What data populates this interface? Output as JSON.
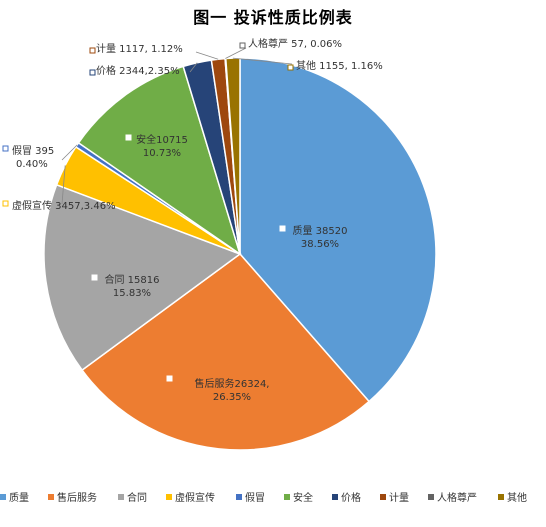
{
  "chart_data": {
    "type": "pie",
    "title": "图一    投诉性质比例表",
    "legend_position": "bottom",
    "slices": [
      {
        "name": "质量",
        "value": 38520,
        "percent_label": "38.56%",
        "color": "#5B9BD5",
        "label": "质量 38520",
        "sub": "38.56%"
      },
      {
        "name": "售后服务",
        "value": 26324,
        "percent_label": "26.35%",
        "color": "#ED7D31",
        "label": "售后服务26324,",
        "sub": "26.35%"
      },
      {
        "name": "合同",
        "value": 15816,
        "percent_label": "15.83%",
        "color": "#A5A5A5",
        "label": "合同 15816",
        "sub": "15.83%"
      },
      {
        "name": "虚假宣传",
        "value": 3457,
        "percent_label": "3.46%",
        "color": "#FFC000",
        "label": "虚假宣传 3457,3.46%",
        "sub": ""
      },
      {
        "name": "假冒",
        "value": 395,
        "percent_label": "0.40%",
        "color": "#4472C4",
        "label": "假冒 395",
        "sub": "0.40%"
      },
      {
        "name": "安全",
        "value": 10715,
        "percent_label": "10.73%",
        "color": "#70AD47",
        "label": "安全10715",
        "sub": "10.73%"
      },
      {
        "name": "价格",
        "value": 2344,
        "percent_label": "2.35%",
        "color": "#264478",
        "label": "价格 2344,2.35%",
        "sub": ""
      },
      {
        "name": "计量",
        "value": 1117,
        "percent_label": "1.12%",
        "color": "#9E480E",
        "label": "计量 1117, 1.12%",
        "sub": ""
      },
      {
        "name": "人格尊严",
        "value": 57,
        "percent_label": "0.06%",
        "color": "#636363",
        "label": "人格尊严 57, 0.06%",
        "sub": ""
      },
      {
        "name": "其他",
        "value": 1155,
        "percent_label": "1.16%",
        "color": "#997300",
        "label": "其他 1155, 1.16%",
        "sub": ""
      }
    ]
  }
}
